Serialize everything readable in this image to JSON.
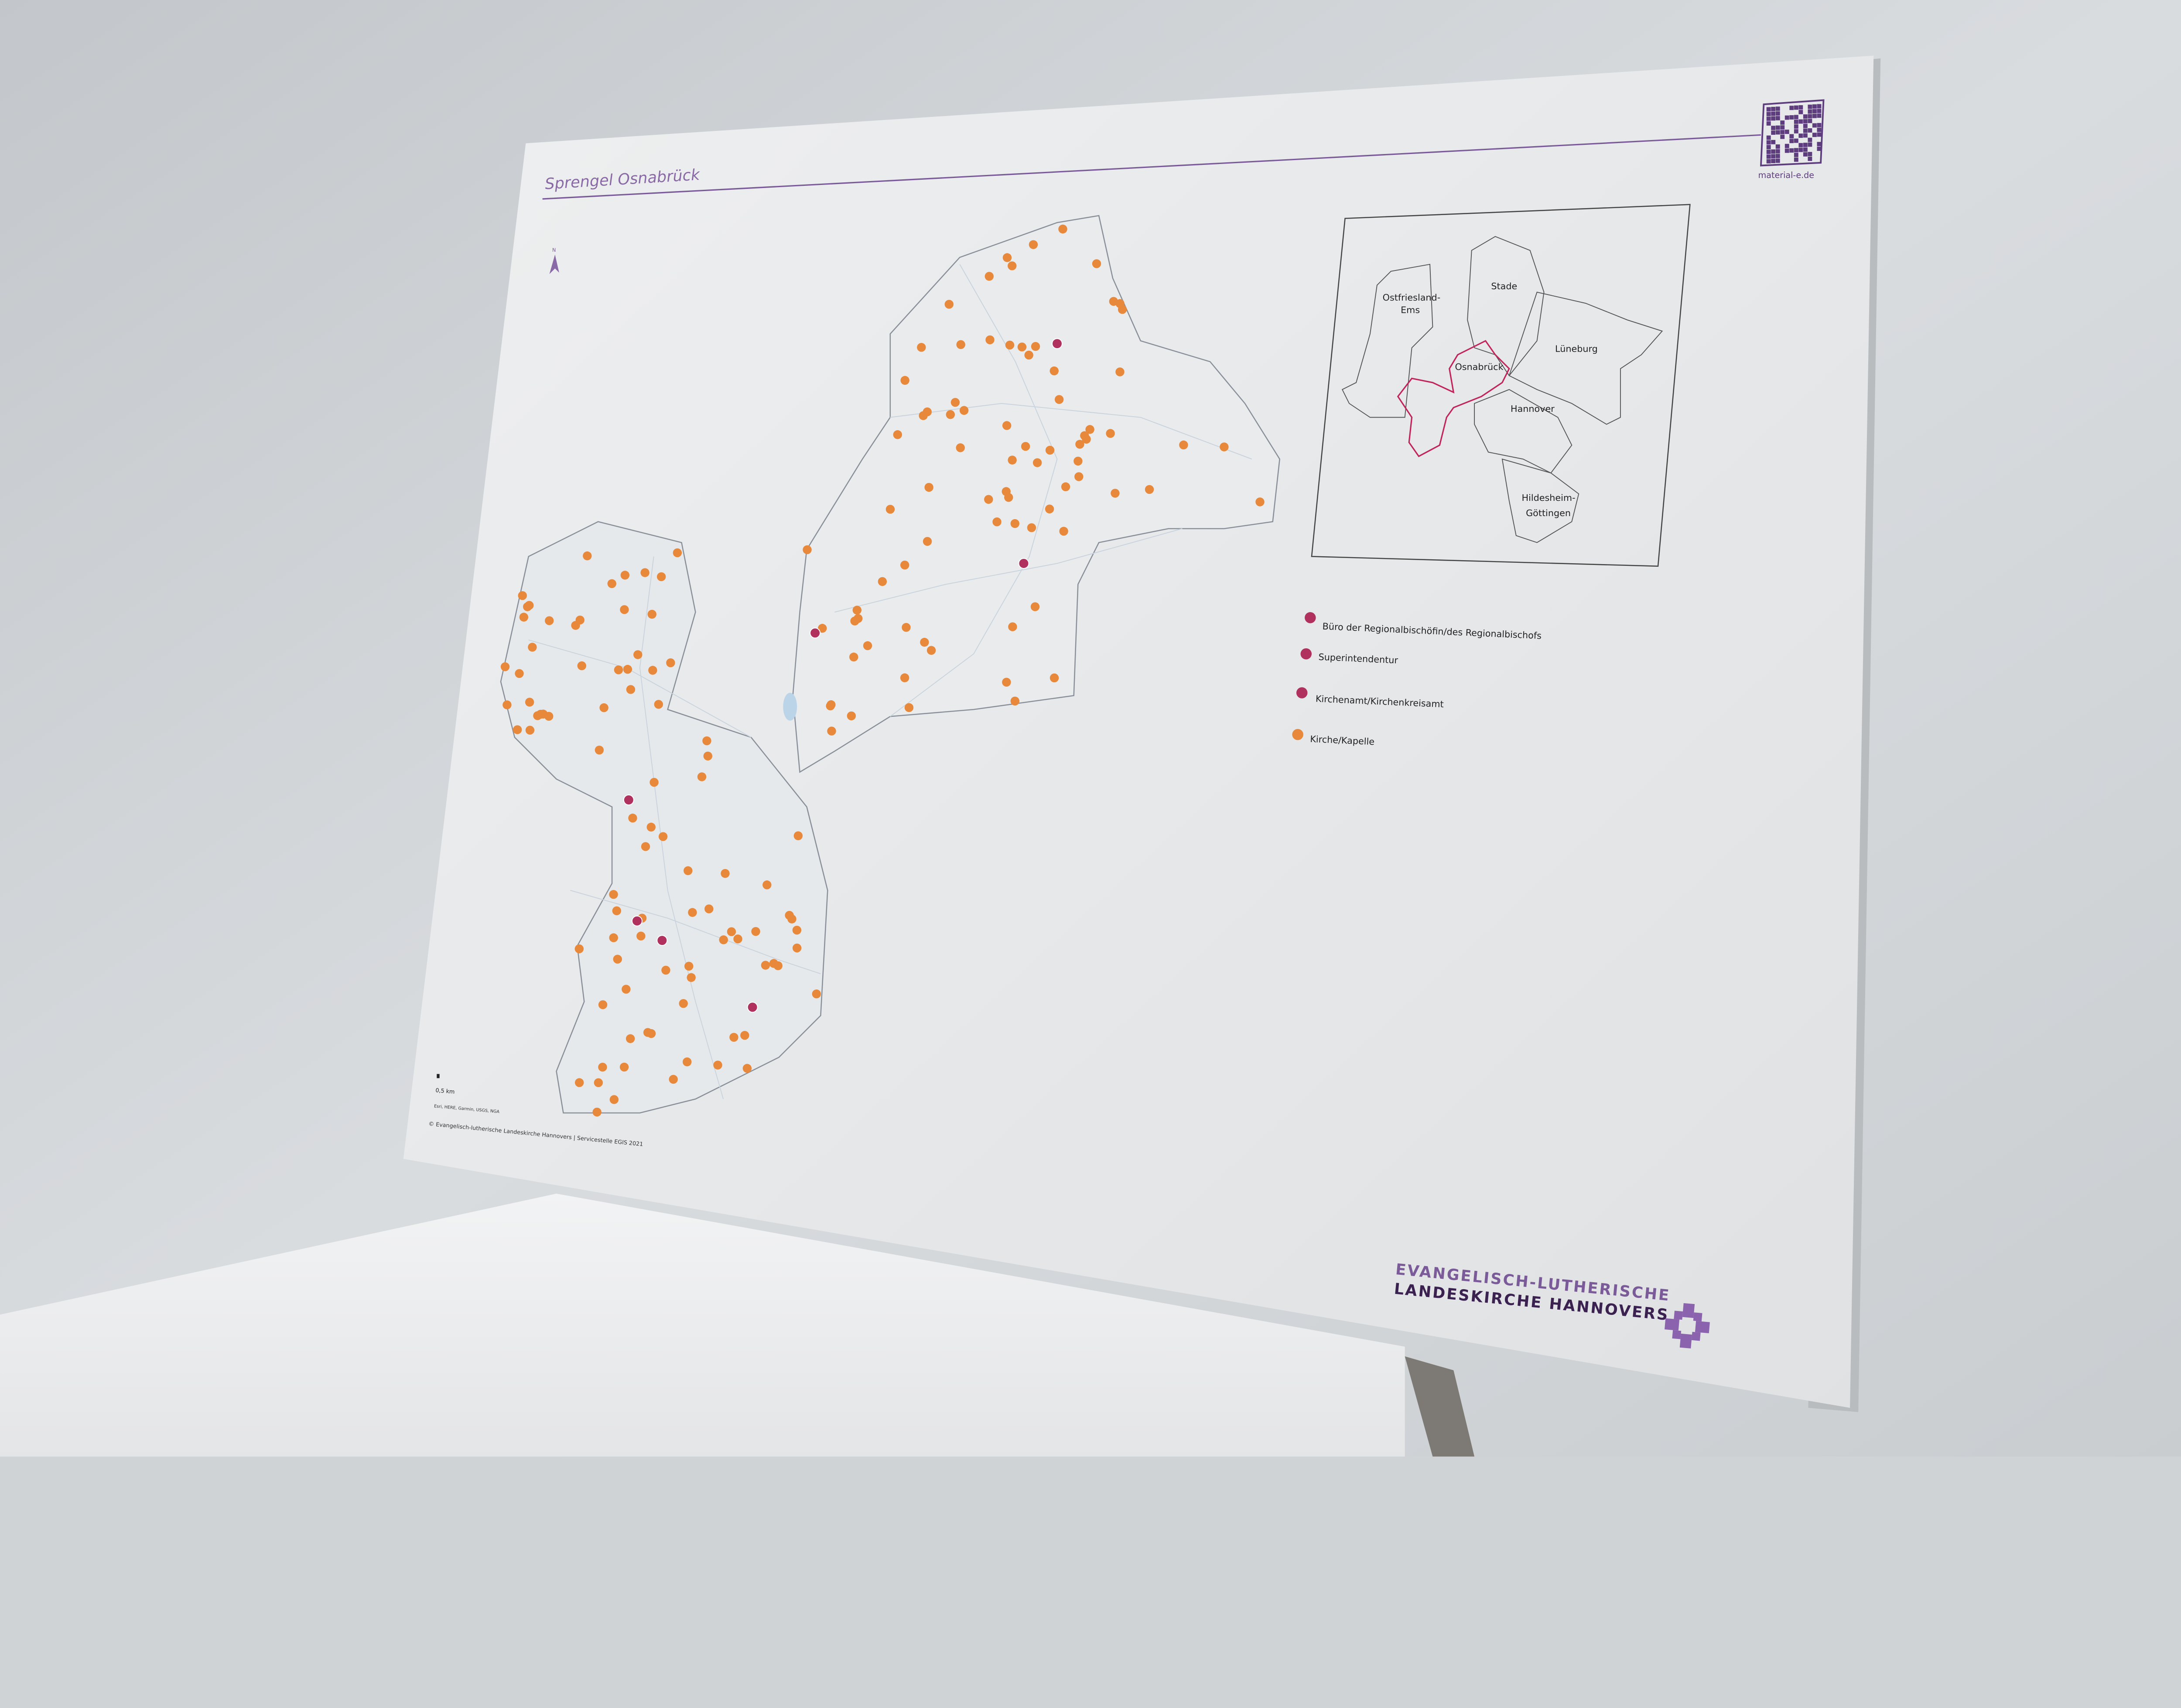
{
  "poster": {
    "title": "Sprengel Osnabrück",
    "north_label": "N",
    "qr_caption": "material-e.de",
    "scale_label": "0,5 km",
    "attribution": "Esri, HERE, Garmin, USGS, NGA",
    "copyright": "© Evangelisch-lutherische Landeskirche Hannovers | Servicestelle EGIS 2021",
    "logo_line1": "EVANGELISCH-LUTHERISCHE",
    "logo_line2": "LANDESKIRCHE HANNOVERS"
  },
  "inset_map": {
    "regions": [
      "Ostfriesland-",
      "Ems",
      "Stade",
      "Lüneburg",
      "Osnabrück",
      "Hannover",
      "Hildesheim-",
      "Göttingen"
    ],
    "highlighted_region": "Osnabrück"
  },
  "legend": {
    "items": [
      {
        "label": "Büro der Regionalbischöfin/des Regionalbischofs",
        "icon": "house-r-icon",
        "color": "#b0305e"
      },
      {
        "label": "Superintendentur",
        "icon": "house-s-icon",
        "color": "#b0305e"
      },
      {
        "label": "Kirchenamt/Kirchenkreisamt",
        "icon": "house-k-icon",
        "color": "#b0305e"
      },
      {
        "label": "Kirche/Kapelle",
        "icon": "church-icon",
        "color": "#e8883a"
      }
    ]
  },
  "colors": {
    "brand_purple": "#6f4a8e",
    "highlight_border": "#c0245a",
    "church_pin": "#e8883a",
    "office_pin": "#b0305e"
  }
}
